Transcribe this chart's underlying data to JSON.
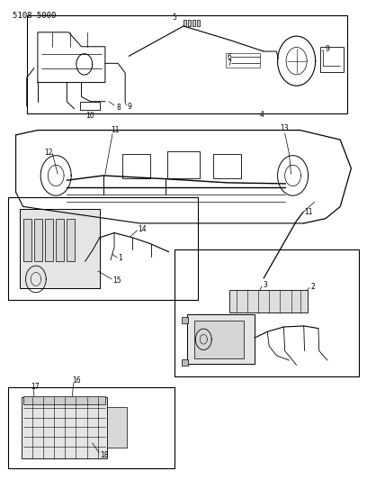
{
  "title": "",
  "part_number": "5108 5000",
  "background_color": "#ffffff",
  "border_color": "#000000",
  "line_color": "#000000",
  "label_color": "#000000",
  "figsize": [
    4.08,
    5.33
  ],
  "dpi": 100
}
